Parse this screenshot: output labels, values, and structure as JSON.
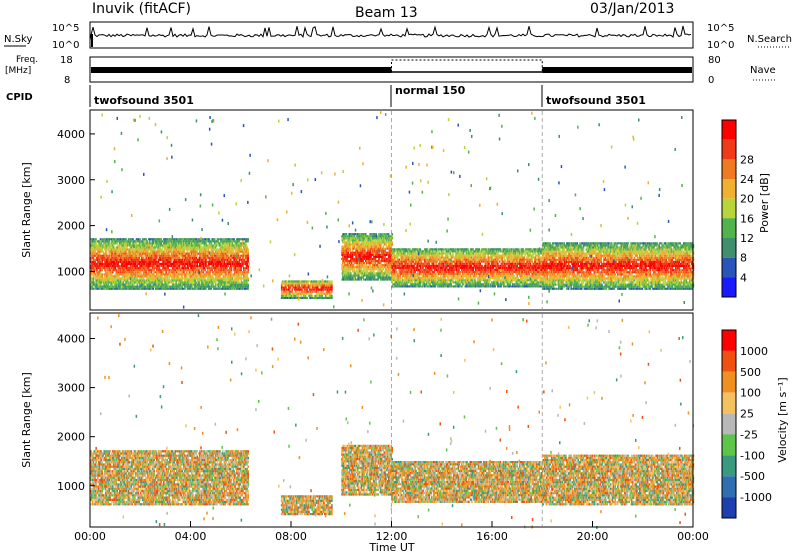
{
  "header": {
    "station": "Inuvik (fitACF)",
    "beam": "Beam 13",
    "date": "03/Jan/2013"
  },
  "top_panels": {
    "nsky_label": "N.Sky",
    "nsky_ticks": [
      "10^5",
      "10^0"
    ],
    "nsearch_label": "N.Search",
    "nsearch_ticks": [
      "10^5",
      "10^0"
    ],
    "freq_label": "Freq.",
    "freq_unit": "[MHz]",
    "freq_ticks": [
      "18",
      "8"
    ],
    "nave_label": "Nave",
    "nave_ticks": [
      "80",
      "0"
    ],
    "cpid_label": "CPID",
    "cpid_segments": [
      {
        "name": "twofsound 3501",
        "start_hour": 0,
        "end_hour": 12
      },
      {
        "name": "normal 150",
        "start_hour": 12,
        "end_hour": 18
      },
      {
        "name": "twofsound 3501",
        "start_hour": 18,
        "end_hour": 24
      }
    ]
  },
  "chart_data": [
    {
      "type": "heatmap",
      "panel": "power",
      "ylabel": "Slant Range [km]",
      "yticks": [
        "1000",
        "2000",
        "3000",
        "4000"
      ],
      "ylim": [
        180,
        4500
      ],
      "colorbar_label": "Power [dB]",
      "colorbar_ticks": [
        "4",
        "8",
        "12",
        "16",
        "20",
        "24",
        "28"
      ],
      "colorbar_colors": [
        "#1a1aff",
        "#2a55b8",
        "#3f8f6e",
        "#52b24b",
        "#b7d43a",
        "#f0b030",
        "#f07a20",
        "#f03a18",
        "#ff0000"
      ],
      "echo_bands": [
        {
          "start_hour": 0.0,
          "end_hour": 6.3,
          "range_min": 600,
          "range_max": 1700
        },
        {
          "start_hour": 7.6,
          "end_hour": 9.6,
          "range_min": 400,
          "range_max": 800
        },
        {
          "start_hour": 10.0,
          "end_hour": 12.0,
          "range_min": 800,
          "range_max": 1800
        },
        {
          "start_hour": 12.0,
          "end_hour": 18.0,
          "range_min": 650,
          "range_max": 1500
        },
        {
          "start_hour": 18.0,
          "end_hour": 24.0,
          "range_min": 600,
          "range_max": 1600
        }
      ]
    },
    {
      "type": "heatmap",
      "panel": "velocity",
      "ylabel": "Slant Range [km]",
      "yticks": [
        "1000",
        "2000",
        "3000",
        "4000"
      ],
      "ylim": [
        180,
        4500
      ],
      "colorbar_label": "Velocity [m s⁻¹]",
      "colorbar_ticks": [
        "1000",
        "500",
        "100",
        "25",
        "-25",
        "-100",
        "-500",
        "-1000"
      ],
      "colorbar_colors": [
        "#1f3fb0",
        "#2f6fb0",
        "#3a9a80",
        "#5ec44a",
        "#b8b8b8",
        "#f5c060",
        "#f09020",
        "#f05010",
        "#ff0000"
      ],
      "echo_bands": [
        {
          "start_hour": 0.0,
          "end_hour": 6.3,
          "range_min": 600,
          "range_max": 1700
        },
        {
          "start_hour": 7.6,
          "end_hour": 9.6,
          "range_min": 400,
          "range_max": 800
        },
        {
          "start_hour": 10.0,
          "end_hour": 12.0,
          "range_min": 800,
          "range_max": 1800
        },
        {
          "start_hour": 12.0,
          "end_hour": 18.0,
          "range_min": 650,
          "range_max": 1500
        },
        {
          "start_hour": 18.0,
          "end_hour": 24.0,
          "range_min": 600,
          "range_max": 1600
        }
      ]
    }
  ],
  "xaxis": {
    "label": "Time UT",
    "ticks": [
      "00:00",
      "04:00",
      "08:00",
      "12:00",
      "16:00",
      "20:00",
      "00:00"
    ],
    "xlim_hours": [
      0,
      24
    ]
  }
}
